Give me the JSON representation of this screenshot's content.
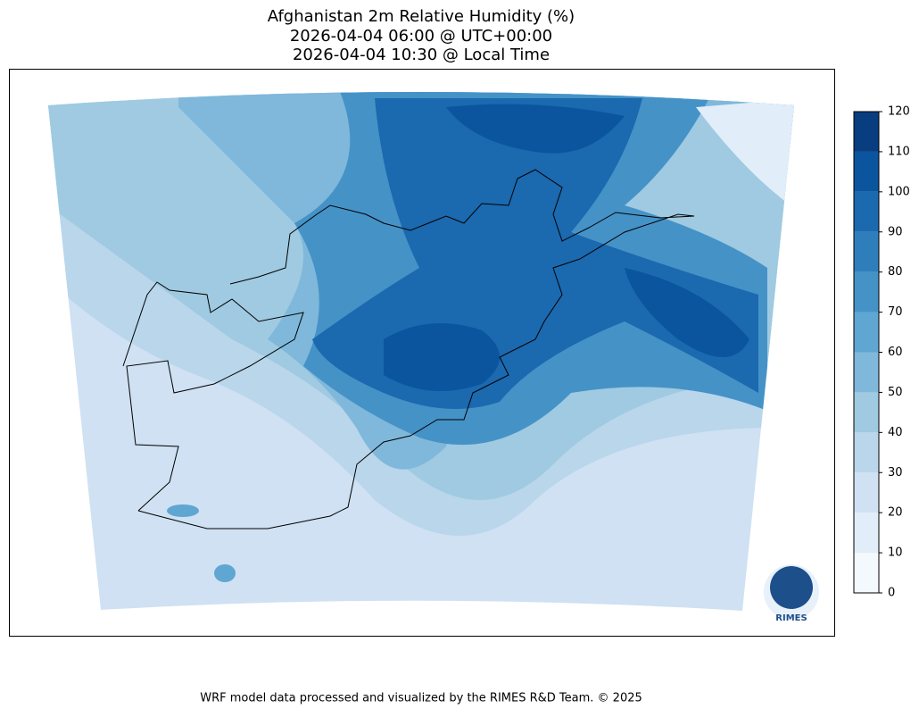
{
  "title": {
    "line1": "Afghanistan 2m Relative Humidity (%)",
    "line2": "2026-04-04 06:00 @ UTC+00:00",
    "line3": "2026-04-04 10:30 @ Local Time"
  },
  "colorbar": {
    "ticks": [
      0,
      10,
      20,
      30,
      40,
      50,
      60,
      70,
      80,
      90,
      100,
      110,
      120
    ],
    "colors": [
      "#f4f9fe",
      "#e1edf8",
      "#cfe1f2",
      "#b9d6eb",
      "#9fcae1",
      "#7fb8da",
      "#60a6d2",
      "#4592c7",
      "#2f7ebc",
      "#1b69af",
      "#0b559f",
      "#083d7f"
    ]
  },
  "logo": "RIMES",
  "footer": "WRF model data processed and visualized by the RIMES R&D Team. © 2025"
}
